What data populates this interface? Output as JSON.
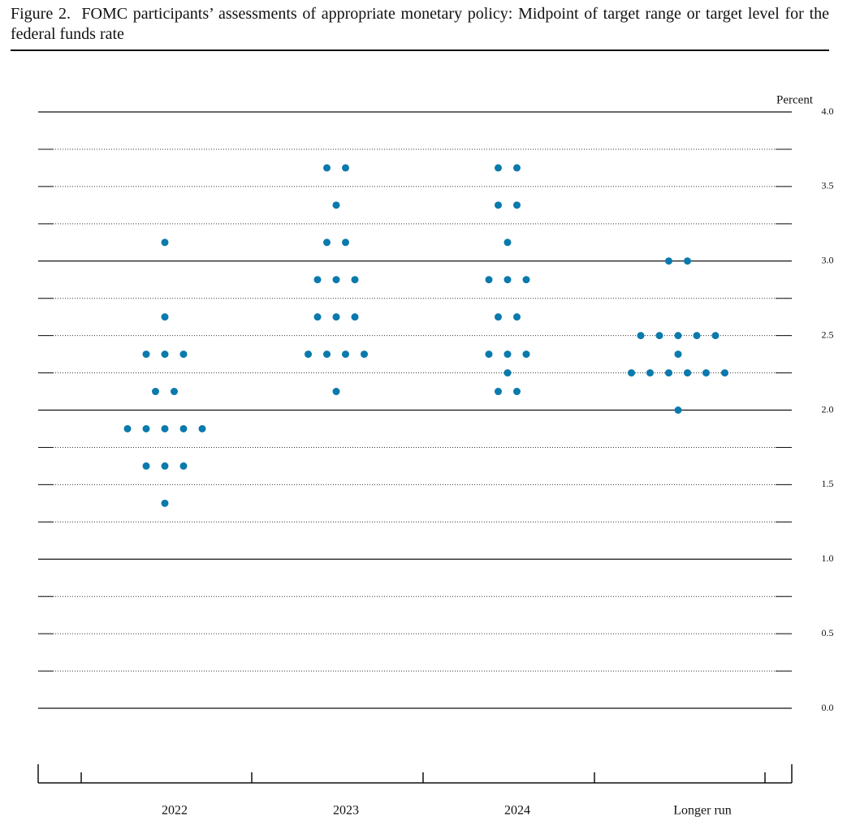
{
  "chart_data": {
    "type": "dot",
    "title": "Figure 2.  FOMC participants’ assessments of appropriate monetary policy: Midpoint of target range or target level for the federal funds rate",
    "y_label": "Percent",
    "categories": [
      "2022",
      "2023",
      "2024",
      "Longer run"
    ],
    "values": [
      [
        3.125,
        2.625,
        2.375,
        2.375,
        2.375,
        2.125,
        2.125,
        1.875,
        1.875,
        1.875,
        1.875,
        1.875,
        1.625,
        1.625,
        1.625,
        1.375
      ],
      [
        3.625,
        3.625,
        3.375,
        3.125,
        3.125,
        2.875,
        2.875,
        2.875,
        2.625,
        2.625,
        2.625,
        2.375,
        2.375,
        2.375,
        2.375,
        2.125
      ],
      [
        3.625,
        3.625,
        3.375,
        3.375,
        3.125,
        2.875,
        2.875,
        2.875,
        2.625,
        2.625,
        2.375,
        2.375,
        2.375,
        2.25,
        2.125,
        2.125
      ],
      [
        3,
        3,
        2.5,
        2.5,
        2.5,
        2.5,
        2.5,
        2.375,
        2.25,
        2.25,
        2.25,
        2.25,
        2.25,
        2.25,
        2
      ]
    ],
    "color": "#0a7aad",
    "ylim": [
      0,
      4
    ],
    "yticks": [
      {
        "value": 0,
        "label": "0.0"
      },
      {
        "value": 0.5,
        "label": "0.5"
      },
      {
        "value": 1,
        "label": "1.0"
      },
      {
        "value": 1.5,
        "label": "1.5"
      },
      {
        "value": 2,
        "label": "2.0"
      },
      {
        "value": 2.5,
        "label": "2.5"
      },
      {
        "value": 3,
        "label": "3.0"
      },
      {
        "value": 3.5,
        "label": "3.5"
      },
      {
        "value": 4,
        "label": "4.0"
      }
    ],
    "grid": true
  }
}
